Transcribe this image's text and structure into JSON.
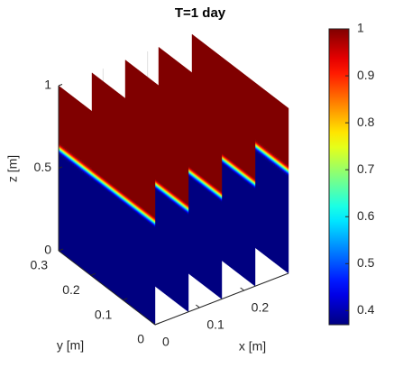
{
  "chart_data": {
    "type": "slice",
    "title": "T=1 day",
    "xlabel": "x [m]",
    "ylabel": "y [m]",
    "zlabel": "z [m]",
    "xlim": [
      0,
      0.3
    ],
    "xticks": [
      0,
      0.1,
      0.2
    ],
    "ylim": [
      0,
      0.3
    ],
    "yticks": [
      0,
      0.1,
      0.2,
      0.3
    ],
    "zlim": [
      0,
      1
    ],
    "zticks": [
      0,
      0.5,
      1
    ],
    "x_slices": [
      0,
      0.075,
      0.15,
      0.225,
      0.3
    ],
    "front_z": [
      0.62,
      0.62,
      0.62,
      0.62,
      0.62
    ],
    "colormap": "jet",
    "clim": [
      0.37,
      1
    ],
    "cticks": [
      0.4,
      0.5,
      0.6,
      0.7,
      0.8,
      0.9,
      1
    ]
  }
}
